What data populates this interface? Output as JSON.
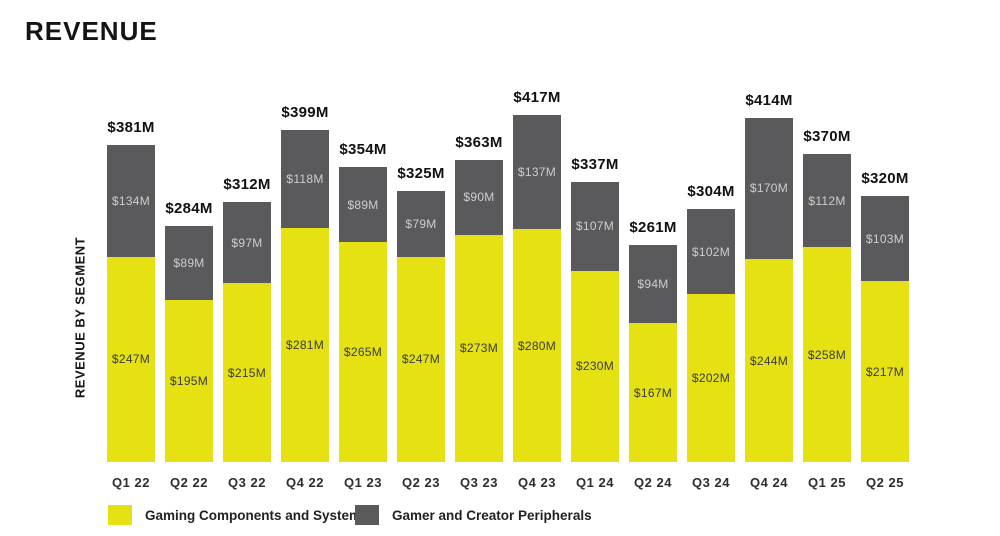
{
  "title": "REVENUE",
  "chart_data": {
    "type": "bar",
    "stacked": true,
    "title": "REVENUE",
    "xlabel": "",
    "ylabel": "REVENUE BY SEGMENT",
    "grid": false,
    "legend_position": "bottom",
    "value_prefix": "$",
    "value_suffix": "M",
    "categories": [
      "Q1 22",
      "Q2 22",
      "Q3 22",
      "Q4 22",
      "Q1 23",
      "Q2 23",
      "Q3 23",
      "Q4 23",
      "Q1 24",
      "Q2 24",
      "Q3 24",
      "Q4 24",
      "Q1 25",
      "Q2 25"
    ],
    "series": [
      {
        "name": "Gaming Components and Systems",
        "color": "#e5e112",
        "label_color": "#3c3c3c",
        "values": [
          247,
          195,
          215,
          281,
          265,
          247,
          273,
          280,
          230,
          167,
          202,
          244,
          258,
          217
        ]
      },
      {
        "name": "Gamer and Creator Peripherals",
        "color": "#5a5a5c",
        "label_color": "#cdcdcd",
        "values": [
          134,
          89,
          97,
          118,
          89,
          79,
          90,
          137,
          107,
          94,
          102,
          170,
          112,
          103
        ]
      }
    ],
    "totals": [
      381,
      284,
      312,
      399,
      354,
      325,
      363,
      417,
      337,
      261,
      304,
      414,
      370,
      320
    ]
  }
}
